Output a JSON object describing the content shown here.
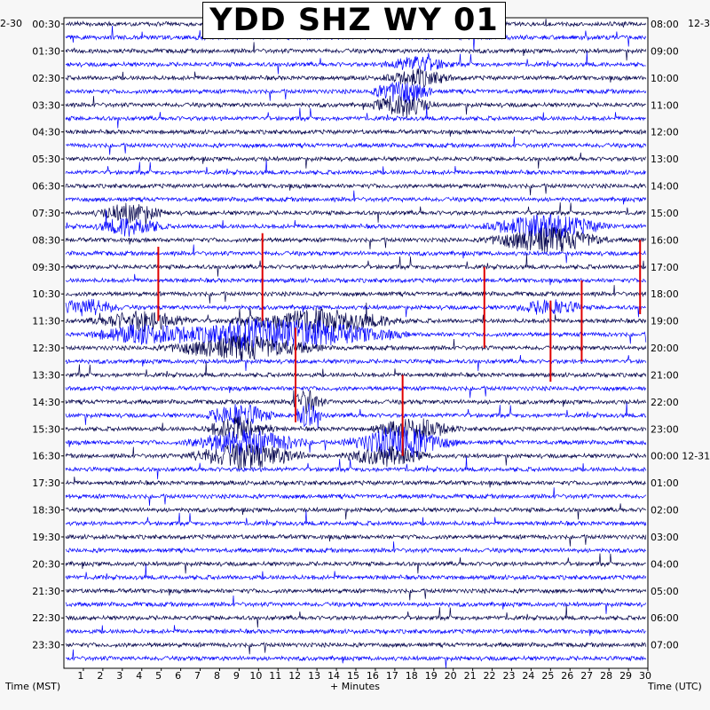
{
  "title": "YDD SHZ WY 01",
  "left_corner_label": "2-30",
  "right_corner_label": "12-3",
  "footer": {
    "left_axis": "Time (MST)",
    "center_axis": "+ Minutes",
    "right_axis": "Time (UTC)"
  },
  "colors": {
    "trace_dark": "#00004a",
    "trace_blue": "#0000ff",
    "event_red": "#e00000",
    "plot_bg": "#ffffff",
    "page_bg": "#f7f7f7"
  },
  "chart_data": {
    "type": "helicorder",
    "title": "YDD SHZ WY 01",
    "xlabel": "+ Minutes",
    "xlim": [
      0,
      30
    ],
    "x_ticks": [
      1,
      2,
      3,
      4,
      5,
      6,
      7,
      8,
      9,
      10,
      11,
      12,
      13,
      14,
      15,
      16,
      17,
      18,
      19,
      20,
      21,
      22,
      23,
      24,
      25,
      26,
      27,
      28,
      29,
      30
    ],
    "rows_per_hour": 2,
    "row_count": 48,
    "left_time_labels": [
      "00:30",
      "01:30",
      "02:30",
      "03:30",
      "04:30",
      "05:30",
      "06:30",
      "07:30",
      "08:30",
      "09:30",
      "10:30",
      "11:30",
      "12:30",
      "13:30",
      "14:30",
      "15:30",
      "16:30",
      "17:30",
      "18:30",
      "19:30",
      "20:30",
      "21:30",
      "22:30",
      "23:30"
    ],
    "right_time_labels": [
      "08:00",
      "09:00",
      "10:00",
      "11:00",
      "12:00",
      "13:00",
      "14:00",
      "15:00",
      "16:00",
      "17:00",
      "18:00",
      "19:00",
      "20:00",
      "21:00",
      "22:00",
      "23:00",
      "00:00 12-31",
      "01:00",
      "02:00",
      "03:00",
      "04:00",
      "05:00",
      "06:00",
      "07:00"
    ],
    "events": [
      {
        "row": 14.5,
        "minute": 3.4,
        "width_min": 2.0,
        "amp": 1.2,
        "color": "dark"
      },
      {
        "row": 15.5,
        "minute": 24.8,
        "width_min": 3.5,
        "amp": 1.6,
        "color": "blue"
      },
      {
        "row": 3.5,
        "minute": 18.2,
        "width_min": 2.0,
        "amp": 1.0,
        "color": "dark"
      },
      {
        "row": 5.5,
        "minute": 17.4,
        "width_min": 1.8,
        "amp": 1.5,
        "color": "dark"
      },
      {
        "row": 21,
        "minute": 1.2,
        "width_min": 2.0,
        "amp": 1.0,
        "color": "blue"
      },
      {
        "row": 21,
        "minute": 25.0,
        "width_min": 2.0,
        "amp": 1.0,
        "color": "blue"
      },
      {
        "row": 22.5,
        "minute": 4.0,
        "width_min": 3.0,
        "amp": 1.2,
        "color": "dark"
      },
      {
        "row": 22.5,
        "minute": 13.0,
        "width_min": 5.0,
        "amp": 1.4,
        "color": "dark"
      },
      {
        "row": 23.5,
        "minute": 9.2,
        "width_min": 4.5,
        "amp": 1.5,
        "color": "dark"
      },
      {
        "row": 28.5,
        "minute": 12.5,
        "width_min": 1.0,
        "amp": 1.5,
        "color": "dark"
      },
      {
        "row": 29.5,
        "minute": 9.0,
        "width_min": 2.0,
        "amp": 1.5,
        "color": "blue"
      },
      {
        "row": 30.5,
        "minute": 18.0,
        "width_min": 2.5,
        "amp": 1.3,
        "color": "blue"
      },
      {
        "row": 31.5,
        "minute": 9.4,
        "width_min": 3.5,
        "amp": 1.6,
        "color": "dark"
      },
      {
        "row": 31.5,
        "minute": 16.5,
        "width_min": 2.5,
        "amp": 1.2,
        "color": "blue"
      }
    ],
    "red_marks": [
      {
        "minute": 4.85,
        "row_start": 16.5,
        "row_end": 22.0
      },
      {
        "minute": 10.2,
        "row_start": 15.5,
        "row_end": 22.0
      },
      {
        "minute": 11.9,
        "row_start": 22.5,
        "row_end": 29.5
      },
      {
        "minute": 17.4,
        "row_start": 26.0,
        "row_end": 32.0
      },
      {
        "minute": 21.6,
        "row_start": 18.0,
        "row_end": 24.0
      },
      {
        "minute": 25.0,
        "row_start": 20.5,
        "row_end": 26.5
      },
      {
        "minute": 26.6,
        "row_start": 19.0,
        "row_end": 25.0
      },
      {
        "minute": 29.6,
        "row_start": 16.0,
        "row_end": 21.5
      }
    ]
  }
}
